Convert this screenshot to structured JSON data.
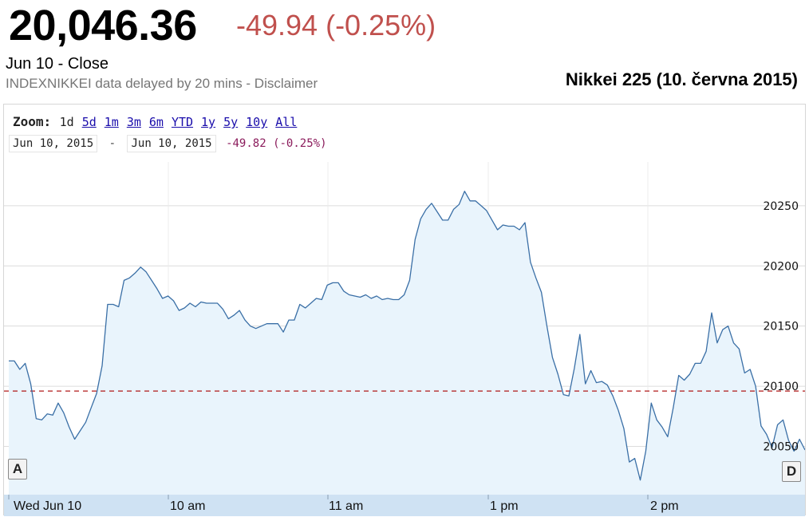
{
  "header": {
    "price": "20,046.36",
    "change": "-49.94 (-0.25%)",
    "close_line": "Jun 10 - Close",
    "delay_line": "INDEXNIKKEI data delayed by 20 mins - Disclaimer",
    "figure_title": "Nikkei 225 (10. června 2015)"
  },
  "zoom": {
    "label": "Zoom:",
    "options": [
      "1d",
      "5d",
      "1m",
      "3m",
      "6m",
      "YTD",
      "1y",
      "5y",
      "10y",
      "All"
    ],
    "active": "1d"
  },
  "range": {
    "start": "Jun 10, 2015",
    "separator": "-",
    "end": "Jun 10, 2015",
    "change": "-49.82 (-0.25%)"
  },
  "nav": {
    "left": "A",
    "right": "D"
  },
  "colors": {
    "line": "#3a6fa6",
    "fill": "#e9f4fc",
    "prev_close": "#b01818",
    "down": "#c0504d",
    "grid": "#dcdcdc",
    "strip": "#cfe2f3"
  },
  "chart_data": {
    "type": "area",
    "x_ticks": [
      "Wed Jun 10",
      "10 am",
      "11 am",
      "1 pm",
      "2 pm"
    ],
    "y_ticks": [
      20050,
      20100,
      20150,
      20200,
      20250
    ],
    "ylim": [
      20020,
      20290
    ],
    "reference_line": {
      "value": 20096
    },
    "grid": true,
    "series": [
      {
        "values": [
          20121,
          20121,
          20114,
          20119,
          20102,
          20073,
          20072,
          20077,
          20076,
          20086,
          20078,
          20066,
          20056,
          20063,
          20070,
          20082,
          20094,
          20117,
          20168,
          20168,
          20166,
          20188,
          20190,
          20194,
          20199,
          20195,
          20188,
          20181,
          20173,
          20175,
          20171,
          20163,
          20165,
          20169,
          20166,
          20170,
          20169,
          20169,
          20169,
          20164,
          20156,
          20159,
          20163,
          20155,
          20150,
          20148,
          20150,
          20152,
          20152,
          20152,
          20145,
          20155,
          20155,
          20168,
          20165,
          20169,
          20173,
          20172,
          20184,
          20186,
          20186,
          20179,
          20176,
          20175,
          20174,
          20176,
          20173,
          20175,
          20172,
          20173,
          20172,
          20172,
          20176,
          20188,
          20222,
          20239,
          20247,
          20252,
          20245,
          20238,
          20238,
          20247,
          20251,
          20262,
          20254,
          20254,
          20250,
          20246,
          20238,
          20230,
          20234,
          20233,
          20233,
          20230,
          20236,
          20203,
          20190,
          20178,
          20150,
          20124,
          20110,
          20093,
          20092,
          20115,
          20143,
          20102,
          20113,
          20103,
          20104,
          20101,
          20092,
          20080,
          20065,
          20037,
          20040,
          20022,
          20046,
          20086,
          20072,
          20066,
          20058,
          20082,
          20109,
          20105,
          20110,
          20119,
          20119,
          20129,
          20161,
          20136,
          20147,
          20150,
          20136,
          20131,
          20111,
          20114,
          20100,
          20067,
          20060,
          20049,
          20068,
          20072,
          20055,
          20046,
          20056,
          20047
        ]
      }
    ]
  }
}
